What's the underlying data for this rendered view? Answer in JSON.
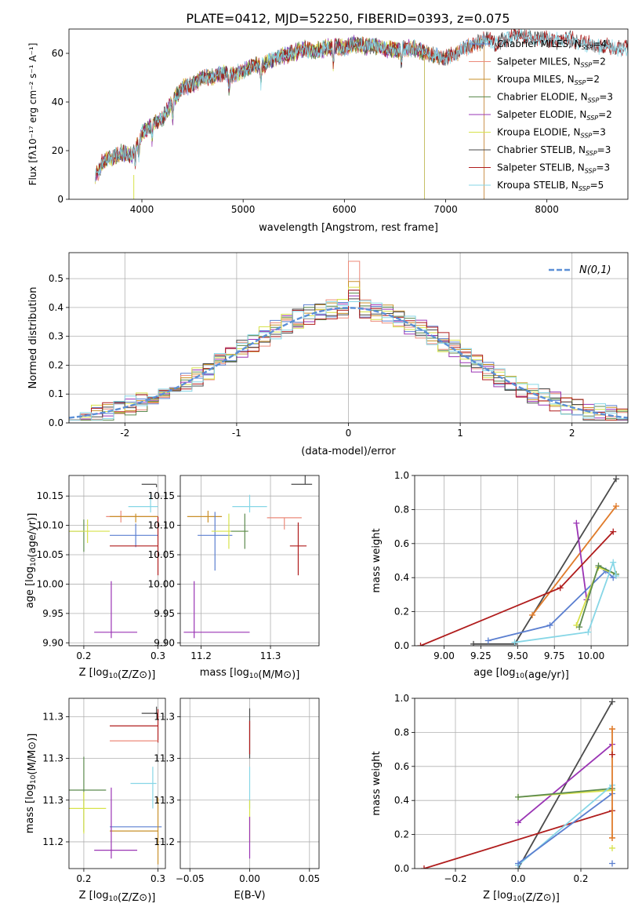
{
  "figure": {
    "title": "PLATE=0412, MJD=52250, FIBERID=0393, z=0.075"
  },
  "chart_data": [
    {
      "id": "spectrum",
      "type": "line",
      "title": "PLATE=0412, MJD=52250, FIBERID=0393, z=0.075",
      "xlabel": "wavelength [Angstrom, rest frame]",
      "ylabel": "Flux [fλ10⁻¹⁷ erg cm⁻² s⁻¹ A⁻¹]",
      "xlim": [
        3280,
        8800
      ],
      "ylim": [
        0,
        70
      ],
      "xticks": [
        4000,
        5000,
        6000,
        7000,
        8000
      ],
      "yticks": [
        0,
        20,
        40,
        60
      ],
      "grid": false,
      "legend_position": "right",
      "continuum_x": [
        3540,
        3600,
        3700,
        3800,
        3900,
        4000,
        4100,
        4200,
        4300,
        4400,
        4500,
        4600,
        4700,
        4800,
        4900,
        5000,
        5100,
        5200,
        5300,
        5400,
        5500,
        5600,
        5700,
        5800,
        5900,
        6000,
        6100,
        6200,
        6300,
        6400,
        6500,
        6600,
        6700,
        6800,
        6900,
        7000,
        7100,
        7200,
        7300,
        7400,
        7500,
        7600,
        7700,
        7800,
        7900,
        8000,
        8100,
        8200,
        8300,
        8400,
        8500,
        8600,
        8700,
        8800
      ],
      "continuum_y": [
        12,
        15,
        17,
        19,
        18,
        27,
        31,
        33,
        40,
        46,
        47,
        50,
        50,
        52,
        51,
        53,
        55,
        55,
        58,
        59,
        60,
        62,
        61,
        62,
        63,
        62,
        64,
        63,
        63,
        62,
        61,
        62,
        62,
        60,
        59,
        58,
        60,
        62,
        64,
        66,
        64,
        66,
        68,
        67,
        66,
        66,
        65,
        66,
        65,
        64,
        63,
        63,
        62,
        62
      ],
      "absorption_lines": [
        3934,
        3969,
        4101,
        4305,
        4861,
        5175,
        5890,
        6563
      ],
      "series": [
        {
          "name": "Chabrier MILES, N_SSP=4",
          "color": "#5b7fd0",
          "end": 7380
        },
        {
          "name": "Salpeter MILES, N_SSP=2",
          "color": "#ec8a7a",
          "end": 7380
        },
        {
          "name": "Kroupa MILES, N_SSP=2",
          "color": "#c9902a",
          "end": 7380
        },
        {
          "name": "Chabrier ELODIE, N_SSP=3",
          "color": "#5c8a4e",
          "end": 6790
        },
        {
          "name": "Salpeter ELODIE, N_SSP=2",
          "color": "#9a34b4",
          "end": 6790
        },
        {
          "name": "Kroupa ELODIE, N_SSP=3",
          "color": "#d7e24a",
          "end": 6790
        },
        {
          "name": "Chabrier STELIB, N_SSP=3",
          "color": "#4a4a4a",
          "end": 8800
        },
        {
          "name": "Salpeter STELIB, N_SSP=3",
          "color": "#b01c1c",
          "end": 8800
        },
        {
          "name": "Kroupa STELIB, N_SSP=5",
          "color": "#86d6e6",
          "end": 8800
        }
      ],
      "legend_labels": [
        {
          "pre": "Chabrier MILES, N",
          "sub": "SSP",
          "post": "=4"
        },
        {
          "pre": "Salpeter MILES, N",
          "sub": "SSP",
          "post": "=2"
        },
        {
          "pre": "Kroupa MILES, N",
          "sub": "SSP",
          "post": "=2"
        },
        {
          "pre": "Chabrier ELODIE, N",
          "sub": "SSP",
          "post": "=3"
        },
        {
          "pre": "Salpeter ELODIE, N",
          "sub": "SSP",
          "post": "=2"
        },
        {
          "pre": "Kroupa ELODIE, N",
          "sub": "SSP",
          "post": "=3"
        },
        {
          "pre": "Chabrier STELIB, N",
          "sub": "SSP",
          "post": "=3"
        },
        {
          "pre": "Salpeter STELIB, N",
          "sub": "SSP",
          "post": "=3"
        },
        {
          "pre": "Kroupa STELIB, N",
          "sub": "SSP",
          "post": "=5"
        }
      ]
    },
    {
      "id": "residuals",
      "type": "histogram",
      "xlabel": "(data-model)/error",
      "ylabel": "Normed distribution",
      "xlim": [
        -2.5,
        2.5
      ],
      "ylim": [
        0,
        0.59
      ],
      "xticks": [
        -2,
        -1,
        0,
        1,
        2
      ],
      "yticks": [
        0.0,
        0.1,
        0.2,
        0.3,
        0.4,
        0.5
      ],
      "grid": true,
      "legend": "N(0,1)",
      "legend_position": "top-right",
      "gaussian": {
        "mean": 0,
        "sigma": 1,
        "color": "#5b8fd6"
      },
      "bin_width": 0.1,
      "bin_start": -2.5,
      "peak_values": [
        0.46,
        0.56,
        0.49,
        0.45,
        0.44,
        0.47,
        0.43,
        0.46,
        0.42
      ]
    },
    {
      "id": "age-vs-Z",
      "type": "errorbar",
      "xlabel": "Z [log10(Z/Z⊙)]",
      "ylabel": "age  [log10(age/yr)]",
      "xlim": [
        0.18,
        0.31
      ],
      "ylim": [
        9.895,
        10.185
      ],
      "xticks": [
        0.2,
        0.3
      ],
      "yticks": [
        9.9,
        9.95,
        10.0,
        10.05,
        10.1,
        10.15
      ],
      "grid": true,
      "points": [
        {
          "color": "#4a4a4a",
          "x": 0.298,
          "y": 10.17,
          "xerr": [
            0.02,
            0.0
          ],
          "yerr": [
            0.005,
            0.0
          ]
        },
        {
          "color": "#86d6e6",
          "x": 0.29,
          "y": 10.132,
          "xerr": [
            0.03,
            0.01
          ],
          "yerr": [
            0.01,
            0.02
          ]
        },
        {
          "color": "#ec8a7a",
          "x": 0.25,
          "y": 10.115,
          "xerr": [
            0.02,
            0.05
          ],
          "yerr": [
            0.01,
            0.01
          ]
        },
        {
          "color": "#5c8a4e",
          "x": 0.2,
          "y": 10.09,
          "xerr": [
            0.02,
            0.0
          ],
          "yerr": [
            0.035,
            0.02
          ]
        },
        {
          "color": "#d7e24a",
          "x": 0.205,
          "y": 10.09,
          "xerr": [
            0.025,
            0.03
          ],
          "yerr": [
            0.02,
            0.02
          ]
        },
        {
          "color": "#5b7fd0",
          "x": 0.27,
          "y": 10.083,
          "xerr": [
            0.035,
            0.03
          ],
          "yerr": [
            0.02,
            0.02
          ]
        },
        {
          "color": "#c9902a",
          "x": 0.27,
          "y": 10.115,
          "xerr": [
            0.035,
            0.03
          ],
          "yerr": [
            0.01,
            0.005
          ]
        },
        {
          "color": "#b01c1c",
          "x": 0.3,
          "y": 10.065,
          "xerr": [
            0.065,
            0.0
          ],
          "yerr": [
            0.05,
            0.05
          ]
        },
        {
          "color": "#9a34b4",
          "x": 0.237,
          "y": 9.918,
          "xerr": [
            0.023,
            0.035
          ],
          "yerr": [
            0.01,
            0.087
          ]
        }
      ]
    },
    {
      "id": "age-vs-mass",
      "type": "errorbar",
      "xlabel": "mass [log10(M/M⊙)]",
      "ylabel": "",
      "xlim": [
        11.17,
        11.37
      ],
      "ylim": [
        9.895,
        10.185
      ],
      "xticks": [
        11.2,
        11.3
      ],
      "yticks": [
        9.9,
        9.95,
        10.0,
        10.05,
        10.1,
        10.15
      ],
      "grid": true,
      "points": [
        {
          "color": "#4a4a4a",
          "x": 11.35,
          "y": 10.17,
          "xerr": [
            0.02,
            0.01
          ],
          "yerr": [
            0.0,
            0.02
          ]
        },
        {
          "color": "#86d6e6",
          "x": 11.27,
          "y": 10.132,
          "xerr": [
            0.025,
            0.025
          ],
          "yerr": [
            0.01,
            0.02
          ]
        },
        {
          "color": "#ec8a7a",
          "x": 11.32,
          "y": 10.113,
          "xerr": [
            0.025,
            0.025
          ],
          "yerr": [
            0.02,
            0.0
          ]
        },
        {
          "color": "#c9902a",
          "x": 11.21,
          "y": 10.115,
          "xerr": [
            0.03,
            0.02
          ],
          "yerr": [
            0.01,
            0.01
          ]
        },
        {
          "color": "#5b7fd0",
          "x": 11.22,
          "y": 10.083,
          "xerr": [
            0.025,
            0.025
          ],
          "yerr": [
            0.06,
            0.04
          ]
        },
        {
          "color": "#d7e24a",
          "x": 11.24,
          "y": 10.09,
          "xerr": [
            0.025,
            0.025
          ],
          "yerr": [
            0.03,
            0.03
          ]
        },
        {
          "color": "#5c8a4e",
          "x": 11.263,
          "y": 10.09,
          "xerr": [
            0.02,
            0.005
          ],
          "yerr": [
            0.03,
            0.03
          ]
        },
        {
          "color": "#b01c1c",
          "x": 11.34,
          "y": 10.065,
          "xerr": [
            0.012,
            0.012
          ],
          "yerr": [
            0.05,
            0.04
          ]
        },
        {
          "color": "#9a34b4",
          "x": 11.19,
          "y": 9.918,
          "xerr": [
            0.015,
            0.08
          ],
          "yerr": [
            0.01,
            0.087
          ]
        }
      ]
    },
    {
      "id": "weight-vs-age",
      "type": "line",
      "xlabel": "age  [log10(age/yr)]",
      "ylabel": "mass weight",
      "xlim": [
        8.8,
        10.25
      ],
      "ylim": [
        0.0,
        1.0
      ],
      "xticks": [
        9.0,
        9.25,
        9.5,
        9.75,
        10.0
      ],
      "xticklabels": [
        "9.00",
        "9.25",
        "9.50",
        "9.75",
        "10.00"
      ],
      "yticks": [
        0.0,
        0.2,
        0.4,
        0.6,
        0.8,
        1.0
      ],
      "grid": true,
      "series": [
        {
          "color": "#4a4a4a",
          "x": [
            9.2,
            9.48,
            10.17
          ],
          "y": [
            0.01,
            0.01,
            0.98
          ]
        },
        {
          "color": "#e07b2a",
          "x": [
            9.6,
            10.17
          ],
          "y": [
            0.18,
            0.82
          ]
        },
        {
          "color": "#9a34b4",
          "x": [
            9.9,
            9.97
          ],
          "y": [
            0.72,
            0.27
          ]
        },
        {
          "color": "#b01c1c",
          "x": [
            8.84,
            9.79,
            10.15
          ],
          "y": [
            0.0,
            0.34,
            0.67
          ]
        },
        {
          "color": "#5b7fd0",
          "x": [
            9.3,
            9.72,
            10.1,
            10.15
          ],
          "y": [
            0.03,
            0.12,
            0.44,
            0.4
          ]
        },
        {
          "color": "#d7e24a",
          "x": [
            9.9,
            10.05,
            10.17
          ],
          "y": [
            0.12,
            0.46,
            0.42
          ]
        },
        {
          "color": "#5c8a4e",
          "x": [
            9.92,
            10.05,
            10.17
          ],
          "y": [
            0.11,
            0.47,
            0.42
          ]
        },
        {
          "color": "#86d6e6",
          "x": [
            9.48,
            9.98,
            10.15,
            10.17
          ],
          "y": [
            0.02,
            0.08,
            0.49,
            0.41
          ]
        }
      ]
    },
    {
      "id": "mass-vs-Z",
      "type": "errorbar",
      "xlabel": "Z [log10(Z/Z⊙)]",
      "ylabel": "mass [log10(M/M⊙)]",
      "xlim": [
        0.18,
        0.31
      ],
      "ylim": [
        11.168,
        11.372
      ],
      "xticks": [
        0.2,
        0.3
      ],
      "yticks": [
        11.2,
        11.25,
        11.3,
        11.35
      ],
      "grid": true,
      "points": [
        {
          "color": "#4a4a4a",
          "x": 0.298,
          "y": 11.354,
          "xerr": [
            0.02,
            0.0
          ],
          "yerr": [
            0.0,
            0.008
          ]
        },
        {
          "color": "#b01c1c",
          "x": 0.3,
          "y": 11.339,
          "xerr": [
            0.065,
            0.0
          ],
          "yerr": [
            0.02,
            0.02
          ]
        },
        {
          "color": "#ec8a7a",
          "x": 0.3,
          "y": 11.321,
          "xerr": [
            0.065,
            0.0
          ],
          "yerr": [
            0.0,
            0.0
          ]
        },
        {
          "color": "#86d6e6",
          "x": 0.293,
          "y": 11.27,
          "xerr": [
            0.03,
            0.005
          ],
          "yerr": [
            0.03,
            0.02
          ]
        },
        {
          "color": "#5c8a4e",
          "x": 0.2,
          "y": 11.262,
          "xerr": [
            0.02,
            0.03
          ],
          "yerr": [
            0.05,
            0.04
          ]
        },
        {
          "color": "#d7e24a",
          "x": 0.2,
          "y": 11.24,
          "xerr": [
            0.02,
            0.03
          ],
          "yerr": [
            0.03,
            0.02
          ]
        },
        {
          "color": "#5b7fd0",
          "x": 0.27,
          "y": 11.218,
          "xerr": [
            0.035,
            0.035
          ],
          "yerr": [
            0.0,
            0.0
          ]
        },
        {
          "color": "#c9902a",
          "x": 0.3,
          "y": 11.213,
          "xerr": [
            0.065,
            0.0
          ],
          "yerr": [
            0.04,
            0.04
          ]
        },
        {
          "color": "#9a34b4",
          "x": 0.237,
          "y": 11.19,
          "xerr": [
            0.023,
            0.035
          ],
          "yerr": [
            0.01,
            0.075
          ]
        }
      ]
    },
    {
      "id": "mass-vs-EBV",
      "type": "errorbar",
      "xlabel": "E(B-V)",
      "ylabel": "",
      "xlim": [
        -0.058,
        0.058
      ],
      "ylim": [
        11.168,
        11.372
      ],
      "xticks": [
        -0.05,
        0.0,
        0.05
      ],
      "xticklabels": [
        "−0.05",
        "0.00",
        "0.05"
      ],
      "yticks": [
        11.2,
        11.25,
        11.3,
        11.35
      ],
      "grid": true,
      "points": [
        {
          "color": "#4a4a4a",
          "x": 0.0,
          "y": 11.33,
          "xerr": [
            0,
            0
          ],
          "yerr": [
            0.03,
            0.03
          ]
        },
        {
          "color": "#b01c1c",
          "x": 0.0,
          "y": 11.325,
          "xerr": [
            0,
            0
          ],
          "yerr": [
            0.02,
            0.02
          ]
        },
        {
          "color": "#86d6e6",
          "x": 0.0,
          "y": 11.27,
          "xerr": [
            0,
            0
          ],
          "yerr": [
            0.03,
            0.02
          ]
        },
        {
          "color": "#d7e24a",
          "x": 0.0,
          "y": 11.23,
          "xerr": [
            0,
            0
          ],
          "yerr": [
            0.03,
            0.02
          ]
        },
        {
          "color": "#9a34b4",
          "x": 0.0,
          "y": 11.2,
          "xerr": [
            0,
            0
          ],
          "yerr": [
            0.02,
            0.03
          ]
        }
      ]
    },
    {
      "id": "weight-vs-Z",
      "type": "line",
      "xlabel": "Z [log10(Z/Z⊙)]",
      "ylabel": "mass weight",
      "xlim": [
        -0.33,
        0.35
      ],
      "ylim": [
        0.0,
        1.0
      ],
      "xticks": [
        -0.2,
        0.0,
        0.2
      ],
      "xticklabels": [
        "−0.2",
        "0.0",
        "0.2"
      ],
      "yticks": [
        0.0,
        0.2,
        0.4,
        0.6,
        0.8,
        1.0
      ],
      "grid": true,
      "series": [
        {
          "color": "#4a4a4a",
          "x": [
            0.0,
            0.3
          ],
          "y": [
            0.0,
            0.98
          ]
        },
        {
          "color": "#9a34b4",
          "x": [
            0.0,
            0.3
          ],
          "y": [
            0.27,
            0.73
          ]
        },
        {
          "color": "#b01c1c",
          "x": [
            -0.3,
            0.3
          ],
          "y": [
            0.0,
            0.34
          ]
        },
        {
          "color": "#d7e24a",
          "x": [
            0.0,
            0.3
          ],
          "y": [
            0.42,
            0.46
          ]
        },
        {
          "color": "#5c8a4e",
          "x": [
            0.0,
            0.3
          ],
          "y": [
            0.42,
            0.47
          ]
        },
        {
          "color": "#86d6e6",
          "x": [
            0.0,
            0.3
          ],
          "y": [
            0.02,
            0.49
          ]
        },
        {
          "color": "#5b7fd0",
          "x": [
            0.0,
            0.3
          ],
          "y": [
            0.03,
            0.44
          ]
        },
        {
          "color": "#e07b2a",
          "x": [
            0.3,
            0.3
          ],
          "y": [
            0.18,
            0.82
          ]
        }
      ],
      "right_edge_markers": [
        {
          "color": "#e07b2a",
          "y": 0.82
        },
        {
          "color": "#b01c1c",
          "y": 0.67
        },
        {
          "color": "#e07b2a",
          "y": 0.18
        },
        {
          "color": "#d7e24a",
          "y": 0.12
        },
        {
          "color": "#5b7fd0",
          "y": 0.03
        }
      ]
    }
  ]
}
